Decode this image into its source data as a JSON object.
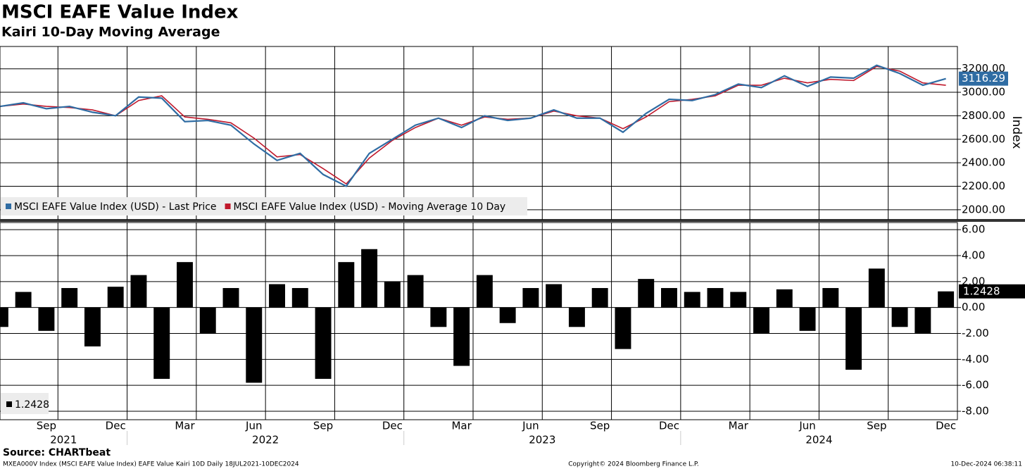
{
  "chart_data": [
    {
      "type": "line",
      "title": "MSCI EAFE Value Index",
      "subtitle": "Kairi 10-Day Moving Average",
      "ylabel": "Index",
      "x": [
        "2021-07",
        "2021-08",
        "2021-09",
        "2021-10",
        "2021-11",
        "2021-12",
        "2022-01",
        "2022-02",
        "2022-03",
        "2022-04",
        "2022-05",
        "2022-06",
        "2022-07",
        "2022-08",
        "2022-09",
        "2022-10",
        "2022-11",
        "2022-12",
        "2023-01",
        "2023-02",
        "2023-03",
        "2023-04",
        "2023-05",
        "2023-06",
        "2023-07",
        "2023-08",
        "2023-09",
        "2023-10",
        "2023-11",
        "2023-12",
        "2024-01",
        "2024-02",
        "2024-03",
        "2024-04",
        "2024-05",
        "2024-06",
        "2024-07",
        "2024-08",
        "2024-09",
        "2024-10",
        "2024-11",
        "2024-12"
      ],
      "xlim": [
        "2021-07",
        "2024-12"
      ],
      "series": [
        {
          "name": "MSCI EAFE Value Index (USD) - Last Price",
          "color": "#2f6ca3",
          "last_label": "3116.29",
          "values": [
            2880,
            2910,
            2860,
            2880,
            2830,
            2800,
            2960,
            2950,
            2750,
            2760,
            2720,
            2560,
            2420,
            2480,
            2300,
            2200,
            2480,
            2600,
            2720,
            2780,
            2700,
            2800,
            2760,
            2780,
            2850,
            2780,
            2780,
            2660,
            2820,
            2940,
            2930,
            2980,
            3070,
            3040,
            3140,
            3050,
            3130,
            3120,
            3230,
            3160,
            3060,
            3116.29
          ]
        },
        {
          "name": "MSCI EAFE Value Index (USD) - Moving Average 10 Day",
          "color": "#c0182b",
          "values": [
            2880,
            2900,
            2880,
            2870,
            2850,
            2800,
            2930,
            2970,
            2790,
            2770,
            2740,
            2610,
            2450,
            2470,
            2350,
            2220,
            2440,
            2590,
            2700,
            2780,
            2720,
            2790,
            2770,
            2780,
            2840,
            2800,
            2780,
            2690,
            2790,
            2920,
            2940,
            2970,
            3060,
            3060,
            3120,
            3080,
            3110,
            3100,
            3220,
            3180,
            3080,
            3060
          ]
        }
      ],
      "ylim": [
        1915,
        3390
      ],
      "yticks": [
        {
          "value": 2000,
          "label": "2000.00"
        },
        {
          "value": 2200,
          "label": "2200.00"
        },
        {
          "value": 2400,
          "label": "2400.00"
        },
        {
          "value": 2600,
          "label": "2600.00"
        },
        {
          "value": 2800,
          "label": "2800.00"
        },
        {
          "value": 3000,
          "label": "3000.00"
        },
        {
          "value": 3200,
          "label": "3200.00"
        }
      ],
      "grid": true
    },
    {
      "type": "bar",
      "color": "#000000",
      "last_label": "1.2428",
      "x": [
        "2021-07",
        "2021-08",
        "2021-09",
        "2021-10",
        "2021-11",
        "2021-12",
        "2022-01",
        "2022-02",
        "2022-03",
        "2022-04",
        "2022-05",
        "2022-06",
        "2022-07",
        "2022-08",
        "2022-09",
        "2022-10",
        "2022-11",
        "2022-12",
        "2023-01",
        "2023-02",
        "2023-03",
        "2023-04",
        "2023-05",
        "2023-06",
        "2023-07",
        "2023-08",
        "2023-09",
        "2023-10",
        "2023-11",
        "2023-12",
        "2024-01",
        "2024-02",
        "2024-03",
        "2024-04",
        "2024-05",
        "2024-06",
        "2024-07",
        "2024-08",
        "2024-09",
        "2024-10",
        "2024-11",
        "2024-12"
      ],
      "xlim": [
        "2021-07",
        "2024-12"
      ],
      "values": [
        -1.5,
        1.2,
        -1.8,
        1.5,
        -3.0,
        1.6,
        2.5,
        -5.5,
        3.5,
        -2.0,
        1.5,
        -5.8,
        1.8,
        1.5,
        -5.5,
        3.5,
        4.5,
        2.0,
        2.5,
        -1.5,
        -4.5,
        2.5,
        -1.2,
        1.5,
        1.8,
        -1.5,
        1.5,
        -3.2,
        2.2,
        1.5,
        1.2,
        1.5,
        1.2,
        -2.0,
        1.4,
        -1.8,
        1.5,
        -4.8,
        3.0,
        -1.5,
        -2.0,
        1.2428
      ],
      "ylim": [
        -8.65,
        6.55
      ],
      "yticks": [
        {
          "value": -8,
          "label": "-8.00"
        },
        {
          "value": -6,
          "label": "-6.00"
        },
        {
          "value": -4,
          "label": "-4.00"
        },
        {
          "value": -2,
          "label": "-2.00"
        },
        {
          "value": 0,
          "label": "0.00"
        },
        {
          "value": 2,
          "label": "2.00"
        },
        {
          "value": 4,
          "label": "4.00"
        },
        {
          "value": 6,
          "label": "6.00"
        }
      ],
      "xticks": [
        {
          "value": "2021-09",
          "label": "Sep"
        },
        {
          "value": "2021-12",
          "label": "Dec"
        },
        {
          "value": "2022-03",
          "label": "Mar"
        },
        {
          "value": "2022-06",
          "label": "Jun"
        },
        {
          "value": "2022-09",
          "label": "Sep"
        },
        {
          "value": "2022-12",
          "label": "Dec"
        },
        {
          "value": "2023-03",
          "label": "Mar"
        },
        {
          "value": "2023-06",
          "label": "Jun"
        },
        {
          "value": "2023-09",
          "label": "Sep"
        },
        {
          "value": "2023-12",
          "label": "Dec"
        },
        {
          "value": "2024-03",
          "label": "Mar"
        },
        {
          "value": "2024-06",
          "label": "Jun"
        },
        {
          "value": "2024-09",
          "label": "Sep"
        },
        {
          "value": "2024-12",
          "label": "Dec"
        }
      ],
      "years": [
        "2021",
        "2022",
        "2023",
        "2024"
      ],
      "grid": true
    }
  ],
  "footer": {
    "source": "Source: CHARTbeat",
    "ticker": "MXEA000V Index (MSCI EAFE Value Index) EAFE Value Kairi 10D  Daily 18JUL2021-10DEC2024",
    "copyright": "Copyright© 2024 Bloomberg Finance L.P.",
    "timestamp": "10-Dec-2024 06:38:11"
  }
}
